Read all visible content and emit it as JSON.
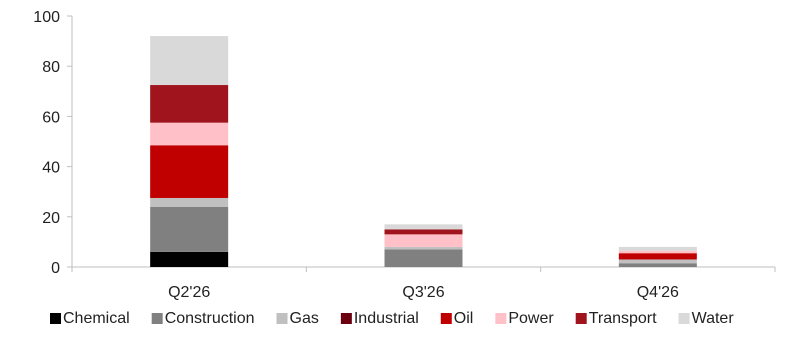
{
  "chart_data": {
    "type": "bar",
    "stacked": true,
    "title": "",
    "xlabel": "",
    "ylabel": "",
    "categories": [
      "Q2'26",
      "Q3'26",
      "Q4'26"
    ],
    "ylim": [
      0,
      100
    ],
    "yticks": [
      0,
      20,
      40,
      60,
      80,
      100
    ],
    "grid": false,
    "legend_position": "bottom",
    "series": [
      {
        "name": "Chemical",
        "color": "#000000",
        "values": [
          6,
          0,
          0
        ]
      },
      {
        "name": "Construction",
        "color": "#808080",
        "values": [
          18,
          7,
          1.5
        ]
      },
      {
        "name": "Gas",
        "color": "#c0c0c0",
        "values": [
          3.5,
          1,
          1.5
        ]
      },
      {
        "name": "Industrial",
        "color": "#6b0010",
        "values": [
          0,
          0,
          0
        ]
      },
      {
        "name": "Oil",
        "color": "#c00000",
        "values": [
          21,
          0,
          2.5
        ]
      },
      {
        "name": "Power",
        "color": "#ffc0c8",
        "values": [
          9,
          5,
          1
        ]
      },
      {
        "name": "Transport",
        "color": "#a0141e",
        "values": [
          15,
          2,
          0
        ]
      },
      {
        "name": "Water",
        "color": "#d9d9d9",
        "values": [
          19.5,
          2,
          1.5
        ]
      }
    ]
  }
}
